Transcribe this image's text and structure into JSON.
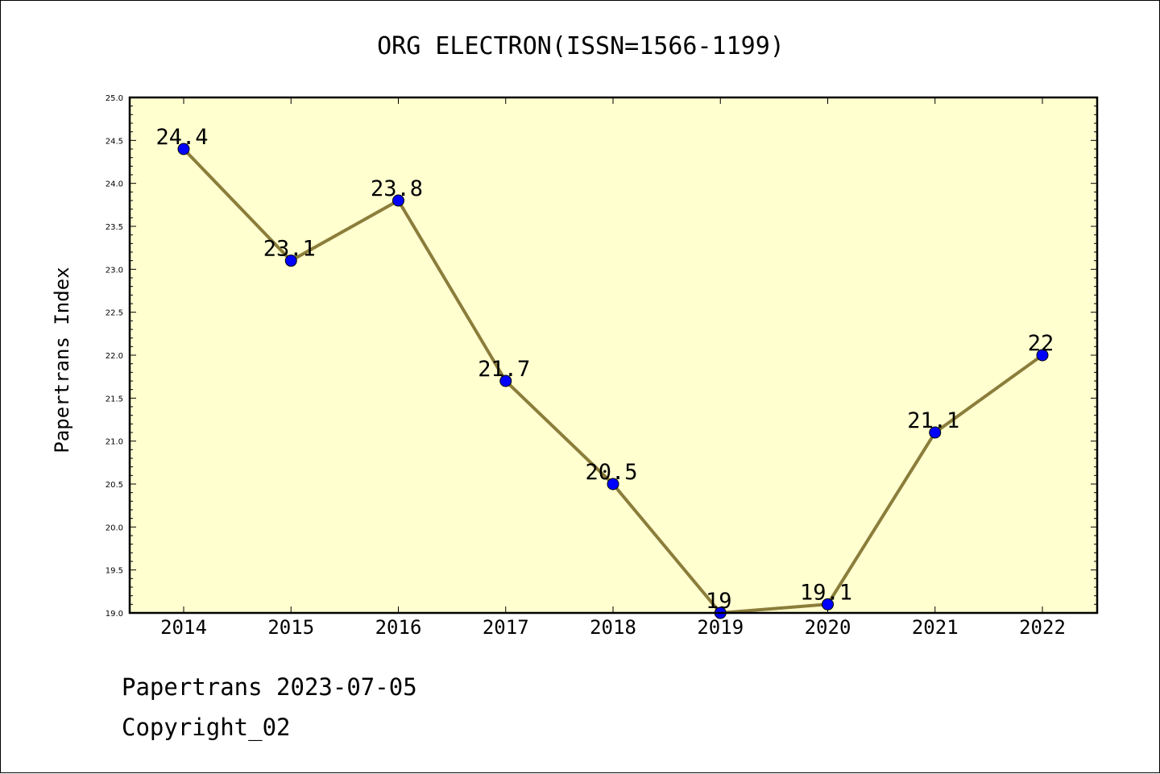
{
  "chart_data": {
    "type": "line",
    "title": "ORG ELECTRON(ISSN=1566-1199)",
    "xlabel": "",
    "ylabel": "Papertrans Index",
    "categories": [
      "2014",
      "2015",
      "2016",
      "2017",
      "2018",
      "2019",
      "2020",
      "2021",
      "2022"
    ],
    "series": [
      {
        "values": [
          24.4,
          23.1,
          23.8,
          21.7,
          20.5,
          19.0,
          19.1,
          21.1,
          22.0
        ],
        "data_labels": [
          "24.4",
          "23.1",
          "23.8",
          "21.7",
          "20.5",
          "19",
          "19.1",
          "21.1",
          "22"
        ]
      }
    ],
    "ylim": [
      19.0,
      25.0
    ],
    "yticks": [
      "19.0",
      "19.5",
      "20.0",
      "20.5",
      "21.0",
      "21.5",
      "22.0",
      "22.5",
      "23.0",
      "23.5",
      "24.0",
      "24.5",
      "25.0"
    ],
    "grid": false,
    "colors": {
      "plot_background": "#ffffd0",
      "line": "#8b7d3a",
      "marker": "#0000ff"
    }
  },
  "footer": {
    "line1": "Papertrans 2023-07-05",
    "line2": "Copyright_02"
  }
}
